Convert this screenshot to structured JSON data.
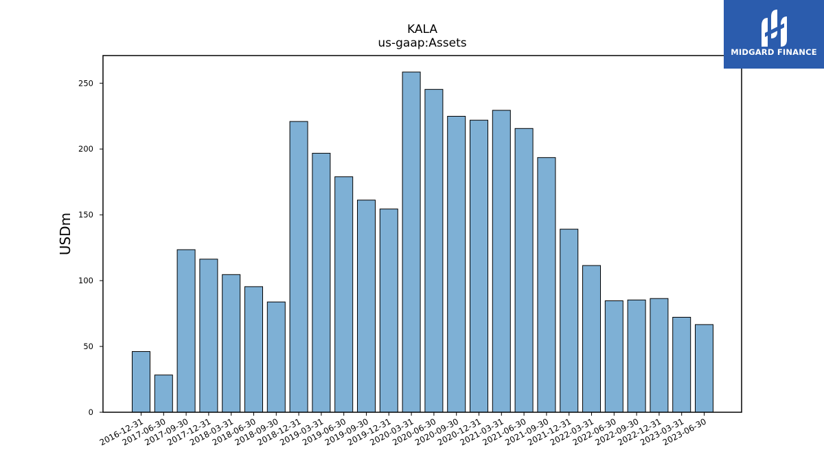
{
  "brand": {
    "name": "MIDGARD FINANCE",
    "background": "#2b5cad",
    "text_color": "#ffffff"
  },
  "chart_data": {
    "type": "bar",
    "title": "KALA",
    "subtitle": "us-gaap:Assets",
    "xlabel": "",
    "ylabel": "USDm",
    "ylim": [
      0,
      271
    ],
    "yticks": [
      0,
      50,
      100,
      150,
      200,
      250
    ],
    "grid": false,
    "bar_color": "#7eb0d5",
    "edge_color": "#000000",
    "categories": [
      "2016-12-31",
      "2017-06-30",
      "2017-09-30",
      "2017-12-31",
      "2018-03-31",
      "2018-06-30",
      "2018-09-30",
      "2018-12-31",
      "2019-03-31",
      "2019-06-30",
      "2019-09-30",
      "2019-12-31",
      "2020-03-31",
      "2020-06-30",
      "2020-09-30",
      "2020-12-31",
      "2021-03-31",
      "2021-06-30",
      "2021-09-30",
      "2021-12-31",
      "2022-03-31",
      "2022-06-30",
      "2022-09-30",
      "2022-12-31",
      "2023-03-31",
      "2023-06-30"
    ],
    "values": [
      46.1,
      28.3,
      123.5,
      116.3,
      104.6,
      95.4,
      83.8,
      220.9,
      196.8,
      178.9,
      161.2,
      154.4,
      258.5,
      245.3,
      224.9,
      221.9,
      229.4,
      215.6,
      193.5,
      139.1,
      111.5,
      84.7,
      85.3,
      86.4,
      72.2,
      66.6
    ]
  }
}
